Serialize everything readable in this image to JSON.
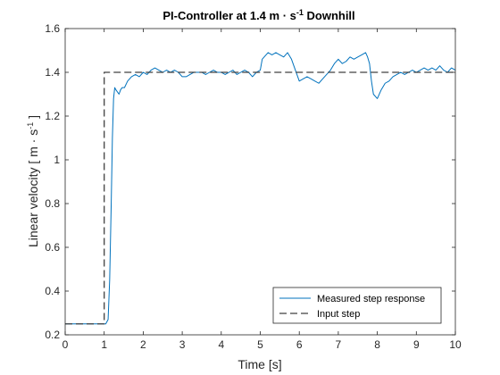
{
  "chart_data": {
    "type": "line",
    "title": "PI-Controller at 1.4 m · s",
    "title_sup": "-1",
    "title_suffix": " Downhill",
    "xlabel": "Time [s]",
    "ylabel": "Linear velocity [ m · s",
    "ylabel_sup": "-1",
    "ylabel_suffix": " ]",
    "xlim": [
      0,
      10
    ],
    "ylim": [
      0.2,
      1.6
    ],
    "xticks": [
      0,
      1,
      2,
      3,
      4,
      5,
      6,
      7,
      8,
      9,
      10
    ],
    "xtick_labels": [
      "0",
      "1",
      "2",
      "3",
      "4",
      "5",
      "6",
      "7",
      "8",
      "9",
      "10"
    ],
    "yticks": [
      0.2,
      0.4,
      0.6,
      0.8,
      1.0,
      1.2,
      1.4,
      1.6
    ],
    "ytick_labels": [
      "0.2",
      "0.4",
      "0.6",
      "0.8",
      "1",
      "1.2",
      "1.4",
      "1.6"
    ],
    "grid": false,
    "legend_position": "bottom-right",
    "series": [
      {
        "name": "Measured step response",
        "color": "#0072BD",
        "style": "solid",
        "x": [
          0,
          0.5,
          1.0,
          1.04,
          1.1,
          1.14,
          1.18,
          1.21,
          1.24,
          1.27,
          1.3,
          1.34,
          1.38,
          1.42,
          1.46,
          1.52,
          1.6,
          1.7,
          1.8,
          1.9,
          2.0,
          2.1,
          2.2,
          2.3,
          2.4,
          2.5,
          2.6,
          2.7,
          2.8,
          2.9,
          3.0,
          3.1,
          3.2,
          3.3,
          3.4,
          3.5,
          3.6,
          3.7,
          3.8,
          3.9,
          4.0,
          4.1,
          4.2,
          4.3,
          4.4,
          4.5,
          4.6,
          4.7,
          4.8,
          4.9,
          5.0,
          5.05,
          5.1,
          5.2,
          5.3,
          5.4,
          5.5,
          5.6,
          5.7,
          5.8,
          5.9,
          6.0,
          6.1,
          6.2,
          6.3,
          6.4,
          6.5,
          6.6,
          6.7,
          6.8,
          6.9,
          7.0,
          7.1,
          7.2,
          7.3,
          7.4,
          7.5,
          7.6,
          7.7,
          7.75,
          7.8,
          7.85,
          7.9,
          8.0,
          8.1,
          8.2,
          8.3,
          8.4,
          8.5,
          8.6,
          8.7,
          8.8,
          8.9,
          9.0,
          9.1,
          9.2,
          9.3,
          9.4,
          9.5,
          9.6,
          9.7,
          9.8,
          9.9,
          10.0
        ],
        "y": [
          0.25,
          0.25,
          0.25,
          0.25,
          0.27,
          0.45,
          0.8,
          1.1,
          1.28,
          1.33,
          1.32,
          1.31,
          1.3,
          1.32,
          1.33,
          1.33,
          1.36,
          1.38,
          1.39,
          1.38,
          1.4,
          1.39,
          1.41,
          1.42,
          1.41,
          1.4,
          1.41,
          1.4,
          1.41,
          1.4,
          1.38,
          1.38,
          1.39,
          1.4,
          1.4,
          1.4,
          1.39,
          1.4,
          1.41,
          1.4,
          1.4,
          1.39,
          1.4,
          1.41,
          1.39,
          1.4,
          1.41,
          1.4,
          1.38,
          1.4,
          1.41,
          1.46,
          1.47,
          1.49,
          1.48,
          1.49,
          1.48,
          1.47,
          1.49,
          1.46,
          1.41,
          1.36,
          1.37,
          1.38,
          1.37,
          1.36,
          1.35,
          1.37,
          1.39,
          1.41,
          1.44,
          1.46,
          1.44,
          1.45,
          1.47,
          1.46,
          1.47,
          1.48,
          1.49,
          1.47,
          1.44,
          1.36,
          1.3,
          1.28,
          1.32,
          1.35,
          1.36,
          1.38,
          1.39,
          1.4,
          1.39,
          1.4,
          1.41,
          1.4,
          1.41,
          1.42,
          1.41,
          1.42,
          1.41,
          1.43,
          1.41,
          1.4,
          1.42,
          1.41
        ]
      },
      {
        "name": "Input step",
        "color": "#404040",
        "style": "dashed",
        "x": [
          0,
          1.0,
          1.0,
          10.0
        ],
        "y": [
          0.25,
          0.25,
          1.4,
          1.4
        ]
      }
    ]
  }
}
